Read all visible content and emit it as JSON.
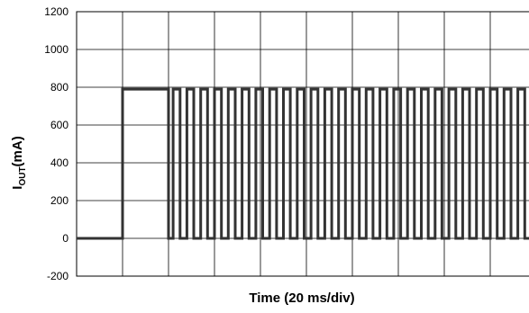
{
  "chart_data": {
    "type": "line",
    "xlabel": "Time (20 ms/div)",
    "ylabel_main": "I",
    "ylabel_sub": "OUT",
    "ylabel_unit": "(mA)",
    "ylim": [
      -200,
      1200
    ],
    "yticks": [
      -200,
      0,
      200,
      400,
      600,
      800,
      1000,
      1200
    ],
    "ytick_labels": [
      "-200",
      "0",
      "200",
      "400",
      "600",
      "800",
      "1000",
      "1200"
    ],
    "x_divisions": 10,
    "grid": true,
    "series": [
      {
        "color": "#333333",
        "x": [
          0,
          1,
          1,
          2,
          2,
          2.1,
          2.1,
          2.25,
          2.25,
          2.4,
          2.4,
          2.55,
          2.55,
          2.7,
          2.7,
          2.85,
          2.85,
          3.0,
          3.0,
          3.15,
          3.15,
          3.3,
          3.3,
          3.45,
          3.45,
          3.6,
          3.6,
          3.75,
          3.75,
          3.9,
          3.9,
          4.05,
          4.05,
          4.2,
          4.2,
          4.35,
          4.35,
          4.5,
          4.5,
          4.65,
          4.65,
          4.8,
          4.8,
          4.95,
          4.95,
          5.1,
          5.1,
          5.25,
          5.25,
          5.4,
          5.4,
          5.55,
          5.55,
          5.7,
          5.7,
          5.85,
          5.85,
          6.0,
          6.0,
          6.15,
          6.15,
          6.3,
          6.3,
          6.45,
          6.45,
          6.6,
          6.6,
          6.75,
          6.75,
          6.9,
          6.9,
          7.05,
          7.05,
          7.2,
          7.2,
          7.35,
          7.35,
          7.5,
          7.5,
          7.65,
          7.65,
          7.8,
          7.8,
          7.95,
          7.95,
          8.1,
          8.1,
          8.25,
          8.25,
          8.4,
          8.4,
          8.55,
          8.55,
          8.7,
          8.7,
          8.85,
          8.85,
          9.0,
          9.0,
          9.15,
          9.15,
          9.3,
          9.3,
          9.45,
          9.45,
          9.6,
          9.6,
          9.75,
          9.75,
          9.9,
          9.9,
          10
        ],
        "y": [
          0,
          0,
          790,
          790,
          0,
          0,
          790,
          790,
          0,
          0,
          790,
          790,
          0,
          0,
          790,
          790,
          0,
          0,
          790,
          790,
          0,
          0,
          790,
          790,
          0,
          0,
          790,
          790,
          0,
          0,
          790,
          790,
          0,
          0,
          790,
          790,
          0,
          0,
          790,
          790,
          0,
          0,
          790,
          790,
          0,
          0,
          790,
          790,
          0,
          0,
          790,
          790,
          0,
          0,
          790,
          790,
          0,
          0,
          790,
          790,
          0,
          0,
          790,
          790,
          0,
          0,
          790,
          790,
          0,
          0,
          790,
          790,
          0,
          0,
          790,
          790,
          0,
          0,
          790,
          790,
          0,
          0,
          790,
          790,
          0,
          0,
          790,
          790,
          0,
          0,
          790,
          790,
          0,
          0,
          790,
          790,
          0,
          0,
          790,
          790,
          0,
          0,
          790,
          790,
          0,
          0,
          790,
          790,
          0,
          0,
          790,
          790
        ]
      }
    ]
  }
}
